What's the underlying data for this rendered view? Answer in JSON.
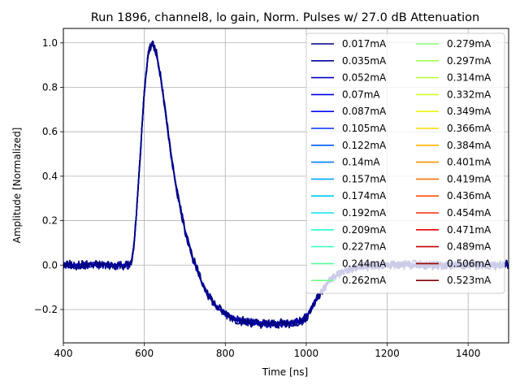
{
  "chart_data": {
    "type": "line",
    "title": "Run 1896, channel8, lo gain, Norm. Pulses w/ 27.0 dB Attenuation",
    "xlabel": "Time [ns]",
    "ylabel": "Amplitude [Normalized]",
    "xlim": [
      400,
      1500
    ],
    "ylim": [
      -0.35,
      1.065
    ],
    "xticks": [
      400,
      600,
      800,
      1000,
      1200,
      1400
    ],
    "yticks": [
      -0.2,
      0.0,
      0.2,
      0.4,
      0.6,
      0.8,
      1.0
    ],
    "ytick_labels": [
      "−0.2",
      "0.0",
      "0.2",
      "0.4",
      "0.6",
      "0.8",
      "1.0"
    ],
    "grid": true,
    "legend_position": "upper-right",
    "legend_columns": 2,
    "pulse_shape": {
      "x": [
        400,
        560,
        565,
        570,
        575,
        580,
        590,
        600,
        610,
        620,
        630,
        640,
        650,
        660,
        670,
        680,
        700,
        720,
        740,
        760,
        780,
        800,
        820,
        850,
        880,
        920,
        960,
        990,
        1000,
        1010,
        1020,
        1040,
        1060,
        1080,
        1100,
        1130,
        1160,
        1200,
        1300,
        1400,
        1500
      ],
      "y": [
        0.0,
        0.0,
        0.005,
        0.03,
        0.1,
        0.22,
        0.5,
        0.78,
        0.96,
        1.0,
        0.95,
        0.85,
        0.72,
        0.58,
        0.45,
        0.34,
        0.16,
        0.03,
        -0.07,
        -0.14,
        -0.19,
        -0.22,
        -0.24,
        -0.255,
        -0.262,
        -0.265,
        -0.262,
        -0.25,
        -0.235,
        -0.205,
        -0.17,
        -0.11,
        -0.065,
        -0.04,
        -0.022,
        -0.01,
        -0.004,
        0.0,
        0.0,
        0.0,
        0.0
      ]
    },
    "series": [
      {
        "name": "0.017mA",
        "color": "#00007f"
      },
      {
        "name": "0.035mA",
        "color": "#00009f"
      },
      {
        "name": "0.052mA",
        "color": "#0000c0"
      },
      {
        "name": "0.07mA",
        "color": "#0000e0"
      },
      {
        "name": "0.087mA",
        "color": "#0008ff"
      },
      {
        "name": "0.105mA",
        "color": "#0030ff"
      },
      {
        "name": "0.122mA",
        "color": "#0058ff"
      },
      {
        "name": "0.14mA",
        "color": "#0080ff"
      },
      {
        "name": "0.157mA",
        "color": "#00a4ff"
      },
      {
        "name": "0.174mA",
        "color": "#00c8fc"
      },
      {
        "name": "0.192mA",
        "color": "#0ce4eb"
      },
      {
        "name": "0.209mA",
        "color": "#26ffd0"
      },
      {
        "name": "0.227mA",
        "color": "#3effb8"
      },
      {
        "name": "0.244mA",
        "color": "#56ffa0"
      },
      {
        "name": "0.262mA",
        "color": "#6eff88"
      },
      {
        "name": "0.279mA",
        "color": "#88ff6e"
      },
      {
        "name": "0.297mA",
        "color": "#a0ff56"
      },
      {
        "name": "0.314mA",
        "color": "#b8ff3e"
      },
      {
        "name": "0.332mA",
        "color": "#d0ff26"
      },
      {
        "name": "0.349mA",
        "color": "#ebf80e"
      },
      {
        "name": "0.366mA",
        "color": "#ffd800"
      },
      {
        "name": "0.384mA",
        "color": "#ffb400"
      },
      {
        "name": "0.401mA",
        "color": "#ff9400"
      },
      {
        "name": "0.419mA",
        "color": "#ff7000"
      },
      {
        "name": "0.436mA",
        "color": "#ff4e00"
      },
      {
        "name": "0.454mA",
        "color": "#ff2a00"
      },
      {
        "name": "0.471mA",
        "color": "#e80000"
      },
      {
        "name": "0.489mA",
        "color": "#c40000"
      },
      {
        "name": "0.506mA",
        "color": "#a00000"
      },
      {
        "name": "0.523mA",
        "color": "#7f0000"
      }
    ]
  }
}
